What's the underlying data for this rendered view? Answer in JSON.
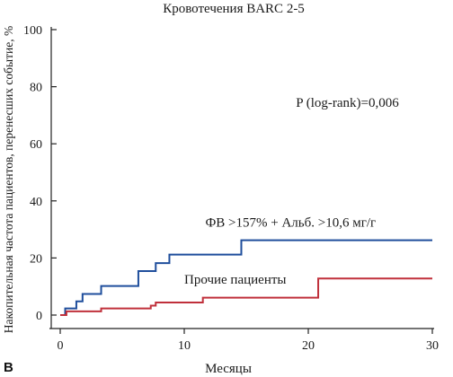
{
  "panel_letter": "В",
  "chart_data": {
    "type": "line",
    "step": true,
    "title": "Кровотечения BARC 2-5",
    "xlabel": "Месяцы",
    "ylabel": "Накопительная частота пациентов, перенесших событие, %",
    "xlim": [
      0,
      30
    ],
    "ylim": [
      0,
      100
    ],
    "x_ticks": [
      0,
      10,
      20,
      30
    ],
    "y_ticks": [
      0,
      20,
      40,
      60,
      80,
      100
    ],
    "grid": false,
    "annotations": [
      {
        "text": "P (log-rank)=0,006",
        "x": 19,
        "y": 73
      }
    ],
    "series": [
      {
        "name": "ФВ >157% + Альб. >10,6 мг/г",
        "color": "#1f4e9c",
        "label_pos": {
          "x": 11.7,
          "y": 31
        },
        "x": [
          0,
          0.4,
          1.3,
          1.8,
          3.3,
          6.3,
          7.7,
          8.8,
          14.6,
          30
        ],
        "y": [
          0,
          2.3,
          4.8,
          7.4,
          10.2,
          15.4,
          18.2,
          21.2,
          26.2,
          26.2
        ]
      },
      {
        "name": "Прочие пациенты",
        "color": "#c0303b",
        "label_pos": {
          "x": 10,
          "y": 11
        },
        "x": [
          0,
          0.5,
          3.3,
          7.3,
          7.7,
          11.5,
          20.8,
          30
        ],
        "y": [
          0,
          1.3,
          2.3,
          3.3,
          4.4,
          6.1,
          12.8,
          12.8
        ]
      }
    ]
  }
}
